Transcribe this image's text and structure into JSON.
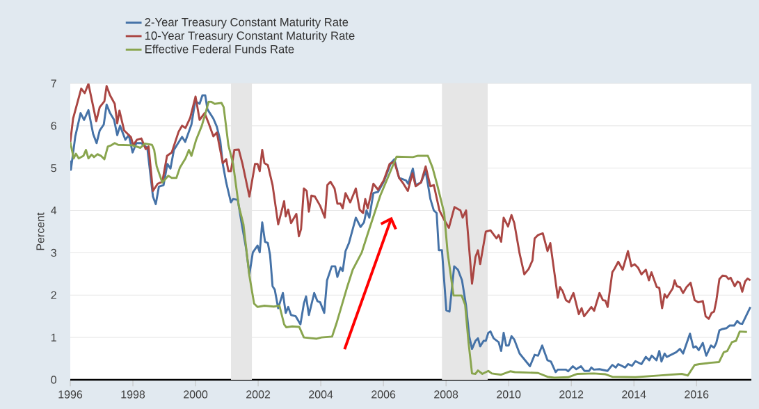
{
  "chart_data": {
    "type": "line",
    "ylabel": "Percent",
    "xlim": [
      1996,
      2017.75
    ],
    "ylim": [
      0,
      7
    ],
    "xticks": [
      1996,
      1998,
      2000,
      2002,
      2004,
      2006,
      2008,
      2010,
      2012,
      2014,
      2016
    ],
    "yticks": [
      0,
      1,
      2,
      3,
      4,
      5,
      6,
      7
    ],
    "grid": "y",
    "legend": "top left",
    "bands": [
      {
        "axis": "x",
        "from": 2001.13,
        "to": 2001.8,
        "color": "#e6e6e6"
      },
      {
        "axis": "x",
        "from": 2007.87,
        "to": 2009.33,
        "color": "#e6e6e6"
      }
    ],
    "series": [
      {
        "name": "2-Year Treasury Constant Maturity Rate",
        "color": "#4572a7",
        "x": [
          1996.0,
          1996.02,
          1996.16,
          1996.33,
          1996.44,
          1996.58,
          1996.73,
          1996.84,
          1996.94,
          1997.07,
          1997.16,
          1997.27,
          1997.4,
          1997.5,
          1997.59,
          1997.76,
          1997.87,
          1997.99,
          1998.11,
          1998.27,
          1998.46,
          1998.64,
          1998.73,
          1998.83,
          1998.98,
          1999.1,
          1999.2,
          1999.31,
          1999.57,
          1999.67,
          1999.87,
          1999.99,
          2000.13,
          2000.22,
          2000.31,
          2000.38,
          2000.57,
          2000.68,
          2000.79,
          2000.87,
          2000.98,
          2001.13,
          2001.2,
          2001.35,
          2001.46,
          2001.61,
          2001.72,
          2001.83,
          2001.98,
          2002.05,
          2002.13,
          2002.22,
          2002.31,
          2002.38,
          2002.46,
          2002.53,
          2002.64,
          2002.79,
          2002.88,
          2002.96,
          2003.05,
          2003.2,
          2003.35,
          2003.46,
          2003.53,
          2003.62,
          2003.79,
          2003.89,
          2003.98,
          2004.11,
          2004.2,
          2004.35,
          2004.46,
          2004.53,
          2004.63,
          2004.7,
          2004.79,
          2004.9,
          2005.12,
          2005.27,
          2005.38,
          2005.46,
          2005.55,
          2005.68,
          2005.83,
          2006.01,
          2006.24,
          2006.35,
          2006.5,
          2006.72,
          2006.79,
          2006.94,
          2007.03,
          2007.2,
          2007.35,
          2007.5,
          2007.61,
          2007.7,
          2007.77,
          2007.87,
          2008.01,
          2008.11,
          2008.26,
          2008.38,
          2008.51,
          2008.64,
          2008.74,
          2008.83,
          2008.94,
          2009.02,
          2009.09,
          2009.2,
          2009.27,
          2009.35,
          2009.42,
          2009.52,
          2009.68,
          2009.76,
          2009.84,
          2009.92,
          2010.0,
          2010.09,
          2010.18,
          2010.35,
          2010.68,
          2010.83,
          2010.94,
          2011.07,
          2011.24,
          2011.35,
          2011.5,
          2011.57,
          2011.83,
          2011.9,
          2012.05,
          2012.16,
          2012.31,
          2012.42,
          2012.57,
          2012.64,
          2012.72,
          2012.9,
          2013.16,
          2013.31,
          2013.42,
          2013.5,
          2013.72,
          2013.81,
          2013.94,
          2014.05,
          2014.24,
          2014.38,
          2014.49,
          2014.57,
          2014.72,
          2014.81,
          2014.88,
          2014.98,
          2015.05,
          2015.35,
          2015.47,
          2015.57,
          2015.79,
          2015.9,
          2015.98,
          2016.07,
          2016.2,
          2016.31,
          2016.46,
          2016.56,
          2016.63,
          2016.73,
          2016.83,
          2016.96,
          2017.05,
          2017.2,
          2017.3,
          2017.38,
          2017.46,
          2017.72
        ],
        "values": [
          5.18,
          4.96,
          5.75,
          6.3,
          6.14,
          6.37,
          5.81,
          5.59,
          5.89,
          6.03,
          6.5,
          6.3,
          6.14,
          5.78,
          6.0,
          5.67,
          5.78,
          5.37,
          5.59,
          5.59,
          5.48,
          4.33,
          4.15,
          4.56,
          4.6,
          5.1,
          4.99,
          5.43,
          5.74,
          5.62,
          6.03,
          6.58,
          6.52,
          6.72,
          6.72,
          6.39,
          6.17,
          5.98,
          5.65,
          5.1,
          4.66,
          4.19,
          4.27,
          4.25,
          3.75,
          3.12,
          2.49,
          3.01,
          3.17,
          3.01,
          3.72,
          3.26,
          3.23,
          2.95,
          2.21,
          2.13,
          1.69,
          2.05,
          1.58,
          1.72,
          1.53,
          1.5,
          1.31,
          1.8,
          1.97,
          1.53,
          2.05,
          1.86,
          1.83,
          1.58,
          2.35,
          2.68,
          2.68,
          2.43,
          2.65,
          2.57,
          3.04,
          3.23,
          3.83,
          3.61,
          3.72,
          4.0,
          3.83,
          4.41,
          4.44,
          4.68,
          5.12,
          5.21,
          4.77,
          4.71,
          4.63,
          4.99,
          4.6,
          4.66,
          4.93,
          4.27,
          4.0,
          3.94,
          3.06,
          3.06,
          1.64,
          1.61,
          2.68,
          2.6,
          2.35,
          1.75,
          1.03,
          0.73,
          0.92,
          0.98,
          0.79,
          0.92,
          0.92,
          1.11,
          1.14,
          0.98,
          0.89,
          0.68,
          1.11,
          0.81,
          0.81,
          1.03,
          0.95,
          0.62,
          0.32,
          0.59,
          0.57,
          0.81,
          0.46,
          0.43,
          0.18,
          0.24,
          0.24,
          0.2,
          0.32,
          0.25,
          0.32,
          0.21,
          0.21,
          0.29,
          0.24,
          0.25,
          0.21,
          0.35,
          0.29,
          0.37,
          0.29,
          0.37,
          0.33,
          0.44,
          0.37,
          0.54,
          0.46,
          0.57,
          0.46,
          0.68,
          0.43,
          0.62,
          0.54,
          0.65,
          0.73,
          0.62,
          1.09,
          0.76,
          0.79,
          0.7,
          0.87,
          0.57,
          0.81,
          0.76,
          0.87,
          1.17,
          1.2,
          1.22,
          1.28,
          1.28,
          1.39,
          1.33,
          1.32,
          1.72
        ]
      },
      {
        "name": "10-Year Treasury Constant Maturity Rate",
        "color": "#aa4643",
        "x": [
          1996.0,
          1996.09,
          1996.35,
          1996.46,
          1996.58,
          1996.83,
          1996.94,
          1997.09,
          1997.16,
          1997.27,
          1997.42,
          1997.5,
          1997.57,
          1997.72,
          1997.94,
          1998.01,
          1998.13,
          1998.27,
          1998.41,
          1998.5,
          1998.64,
          1998.79,
          1998.94,
          1999.09,
          1999.24,
          1999.46,
          1999.57,
          1999.68,
          1999.83,
          2000.0,
          2000.13,
          2000.29,
          2000.42,
          2000.57,
          2000.68,
          2000.87,
          2000.98,
          2001.05,
          2001.13,
          2001.24,
          2001.38,
          2001.5,
          2001.72,
          2001.9,
          2001.98,
          2002.05,
          2002.13,
          2002.2,
          2002.31,
          2002.46,
          2002.64,
          2002.83,
          2002.88,
          2002.96,
          2003.05,
          2003.22,
          2003.3,
          2003.37,
          2003.46,
          2003.55,
          2003.62,
          2003.7,
          2003.81,
          2003.98,
          2004.13,
          2004.21,
          2004.31,
          2004.44,
          2004.53,
          2004.63,
          2004.7,
          2004.79,
          2004.94,
          2005.12,
          2005.24,
          2005.35,
          2005.42,
          2005.5,
          2005.68,
          2005.83,
          2006.01,
          2006.2,
          2006.35,
          2006.5,
          2006.64,
          2006.78,
          2006.93,
          2007.03,
          2007.2,
          2007.35,
          2007.5,
          2007.61,
          2007.79,
          2007.94,
          2008.09,
          2008.27,
          2008.46,
          2008.53,
          2008.64,
          2008.83,
          2008.94,
          2009.02,
          2009.09,
          2009.27,
          2009.42,
          2009.61,
          2009.68,
          2009.76,
          2009.84,
          2009.98,
          2010.09,
          2010.18,
          2010.35,
          2010.5,
          2010.64,
          2010.76,
          2010.83,
          2010.94,
          2011.09,
          2011.24,
          2011.33,
          2011.57,
          2011.64,
          2011.72,
          2011.83,
          2011.93,
          2012.07,
          2012.24,
          2012.33,
          2012.41,
          2012.64,
          2012.73,
          2012.9,
          2013.01,
          2013.09,
          2013.16,
          2013.31,
          2013.38,
          2013.5,
          2013.64,
          2013.81,
          2013.92,
          2014.02,
          2014.13,
          2014.24,
          2014.38,
          2014.48,
          2014.56,
          2014.73,
          2014.81,
          2014.9,
          2014.98,
          2015.05,
          2015.24,
          2015.3,
          2015.37,
          2015.47,
          2015.57,
          2015.68,
          2015.81,
          2015.94,
          2016.05,
          2016.2,
          2016.29,
          2016.39,
          2016.48,
          2016.56,
          2016.63,
          2016.73,
          2016.83,
          2016.94,
          2017.02,
          2017.09,
          2017.22,
          2017.31,
          2017.38,
          2017.46,
          2017.55,
          2017.63,
          2017.72
        ],
        "values": [
          5.62,
          6.17,
          6.88,
          6.77,
          6.99,
          6.11,
          6.44,
          6.58,
          6.94,
          6.72,
          6.52,
          6.06,
          6.36,
          5.89,
          5.73,
          5.54,
          5.67,
          5.7,
          5.45,
          5.51,
          4.46,
          4.63,
          4.68,
          5.29,
          5.37,
          5.86,
          6.0,
          5.95,
          6.19,
          6.69,
          6.14,
          6.3,
          6.06,
          5.75,
          5.84,
          5.12,
          5.21,
          4.93,
          4.93,
          5.43,
          5.44,
          5.1,
          4.33,
          5.1,
          5.1,
          4.93,
          5.43,
          5.12,
          5.07,
          4.6,
          3.67,
          4.22,
          3.86,
          4.02,
          3.7,
          3.92,
          3.39,
          3.56,
          4.52,
          4.46,
          3.97,
          4.35,
          4.33,
          4.11,
          3.83,
          4.6,
          4.68,
          4.52,
          4.16,
          4.16,
          4.05,
          4.41,
          4.19,
          4.52,
          4.02,
          3.94,
          4.27,
          4.05,
          4.63,
          4.49,
          4.71,
          5.1,
          5.15,
          4.77,
          4.63,
          4.46,
          4.88,
          4.57,
          4.66,
          5.04,
          4.57,
          4.6,
          4.0,
          3.78,
          3.59,
          4.08,
          4.0,
          3.83,
          4.0,
          2.27,
          2.9,
          3.06,
          2.73,
          3.5,
          3.53,
          3.34,
          3.42,
          3.26,
          3.83,
          3.62,
          3.89,
          3.7,
          2.98,
          2.49,
          2.62,
          2.82,
          3.34,
          3.42,
          3.46,
          3.04,
          3.23,
          1.94,
          2.19,
          2.1,
          1.88,
          1.83,
          2.05,
          1.55,
          1.69,
          1.5,
          1.72,
          1.63,
          2.05,
          1.88,
          1.87,
          1.72,
          2.54,
          2.62,
          2.79,
          2.6,
          3.04,
          2.68,
          2.73,
          2.65,
          2.49,
          2.6,
          2.35,
          2.54,
          2.19,
          2.17,
          1.69,
          2.02,
          1.94,
          2.16,
          2.35,
          2.21,
          2.19,
          2.05,
          2.19,
          2.29,
          1.88,
          1.83,
          1.86,
          1.5,
          1.44,
          1.58,
          1.61,
          1.86,
          2.38,
          2.46,
          2.45,
          2.38,
          2.41,
          2.21,
          2.32,
          2.29,
          2.08,
          2.32,
          2.39,
          2.35
        ]
      },
      {
        "name": "Effective Federal Funds Rate",
        "color": "#89a54e",
        "x": [
          1996.0,
          1996.02,
          1996.11,
          1996.18,
          1996.27,
          1996.42,
          1996.5,
          1996.58,
          1996.68,
          1996.76,
          1996.87,
          1996.98,
          1997.09,
          1997.2,
          1997.31,
          1997.42,
          1997.53,
          1997.98,
          1998.24,
          1998.38,
          1998.61,
          1998.68,
          1998.76,
          1998.94,
          1999.13,
          1999.24,
          1999.39,
          1999.5,
          1999.68,
          1999.79,
          1999.87,
          2000.02,
          2000.2,
          2000.31,
          2000.42,
          2000.5,
          2000.61,
          2000.83,
          2000.9,
          2001.05,
          2001.2,
          2001.38,
          2001.53,
          2001.72,
          2001.87,
          2001.98,
          2002.2,
          2002.5,
          2002.68,
          2002.83,
          2002.9,
          2003.09,
          2003.31,
          2003.46,
          2003.87,
          2004.02,
          2004.36,
          2004.5,
          2004.83,
          2005.02,
          2005.31,
          2005.5,
          2005.9,
          2006.2,
          2006.42,
          2006.94,
          2007.09,
          2007.42,
          2007.57,
          2007.72,
          2007.94,
          2008.05,
          2008.24,
          2008.5,
          2008.61,
          2008.72,
          2008.83,
          2008.94,
          2009.02,
          2009.16,
          2009.35,
          2009.46,
          2009.76,
          2010.05,
          2010.2,
          2010.94,
          2011.24,
          2011.46,
          2011.9,
          2012.2,
          2012.72,
          2013.09,
          2013.31,
          2014.05,
          2014.79,
          2015.53,
          2015.72,
          2015.94,
          2016.09,
          2016.42,
          2016.72,
          2016.87,
          2016.98,
          2017.13,
          2017.26,
          2017.38,
          2017.61
        ],
        "values": [
          5.62,
          5.54,
          5.23,
          5.34,
          5.23,
          5.29,
          5.43,
          5.23,
          5.32,
          5.26,
          5.33,
          5.29,
          5.21,
          5.51,
          5.54,
          5.59,
          5.55,
          5.54,
          5.48,
          5.58,
          5.55,
          5.43,
          5.04,
          4.66,
          4.82,
          4.77,
          4.77,
          5.01,
          5.23,
          5.43,
          5.29,
          5.67,
          6.0,
          6.28,
          6.57,
          6.57,
          6.52,
          6.54,
          6.44,
          5.54,
          5.1,
          4.11,
          3.67,
          2.46,
          1.8,
          1.72,
          1.75,
          1.73,
          1.75,
          1.31,
          1.24,
          1.26,
          1.25,
          1.0,
          0.97,
          1.0,
          1.02,
          1.33,
          2.16,
          2.6,
          3.01,
          3.45,
          4.35,
          4.88,
          5.27,
          5.26,
          5.29,
          5.29,
          5.01,
          4.6,
          3.94,
          3.01,
          1.99,
          1.99,
          1.77,
          0.87,
          0.15,
          0.14,
          0.22,
          0.14,
          0.21,
          0.15,
          0.12,
          0.2,
          0.18,
          0.16,
          0.07,
          0.05,
          0.06,
          0.14,
          0.15,
          0.13,
          0.07,
          0.06,
          0.1,
          0.14,
          0.1,
          0.35,
          0.37,
          0.4,
          0.42,
          0.65,
          0.68,
          0.89,
          0.92,
          1.14,
          1.13
        ]
      }
    ]
  }
}
